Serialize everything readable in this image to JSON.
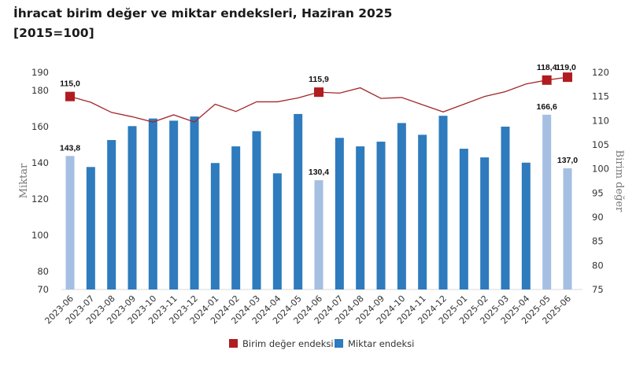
{
  "chart_data": {
    "type": "bar+line",
    "title": "İhracat birim değer ve miktar endeksleri, Haziran 2025",
    "subtitle": "[2015=100]",
    "categories": [
      "2023-06",
      "2023-07",
      "2023-08",
      "2023-09",
      "2023-10",
      "2023-11",
      "2023-12",
      "2024-01",
      "2024-02",
      "2024-03",
      "2024-04",
      "2024-05",
      "2024-06",
      "2024-07",
      "2024-08",
      "2024-09",
      "2024-10",
      "2024-11",
      "2024-12",
      "2025-01",
      "2025-02",
      "2025-03",
      "2025-04",
      "2025-05",
      "2025-06"
    ],
    "y_left": {
      "label": "Miktar",
      "range": [
        70,
        190
      ],
      "ticks": [
        "70",
        "80",
        "100",
        "120",
        "140",
        "160",
        "180",
        "190"
      ]
    },
    "y_right": {
      "label": "Birim değer",
      "range": [
        75,
        120
      ],
      "ticks": [
        "75",
        "80",
        "85",
        "90",
        "95",
        "100",
        "105",
        "110",
        "115",
        "120"
      ]
    },
    "series": [
      {
        "name": "Birim değer endeksi",
        "type": "line",
        "axis": "right",
        "color": "#b01c20",
        "values": [
          115.0,
          113.8,
          111.7,
          110.8,
          109.7,
          111.2,
          109.7,
          113.4,
          111.9,
          113.9,
          113.9,
          114.7,
          115.9,
          115.7,
          116.8,
          114.6,
          114.8,
          113.3,
          111.8,
          113.4,
          115.0,
          116.0,
          117.6,
          118.4,
          119.0
        ],
        "marked_indices": [
          0,
          12,
          23,
          24
        ],
        "data_labels": {
          "0": "115,0",
          "12": "115,9",
          "23": "118,4",
          "24": "119,0"
        }
      },
      {
        "name": "Miktar endeksi",
        "type": "bar",
        "axis": "left",
        "color": "#2e7bbd",
        "highlight_color": "#a5bfe3",
        "values": [
          143.8,
          137.7,
          152.6,
          160.3,
          164.5,
          163.3,
          165.6,
          139.9,
          149.1,
          157.5,
          134.2,
          167.0,
          130.4,
          153.8,
          149.1,
          151.7,
          162.0,
          155.5,
          166.0,
          147.8,
          143.0,
          160.0,
          140.1,
          166.6,
          137.0
        ],
        "highlighted_indices": [
          0,
          12,
          23,
          24
        ],
        "data_labels": {
          "0": "143,8",
          "12": "130,4",
          "23": "166,6",
          "24": "137,0"
        }
      }
    ],
    "grid": false,
    "legend": "bottom"
  }
}
